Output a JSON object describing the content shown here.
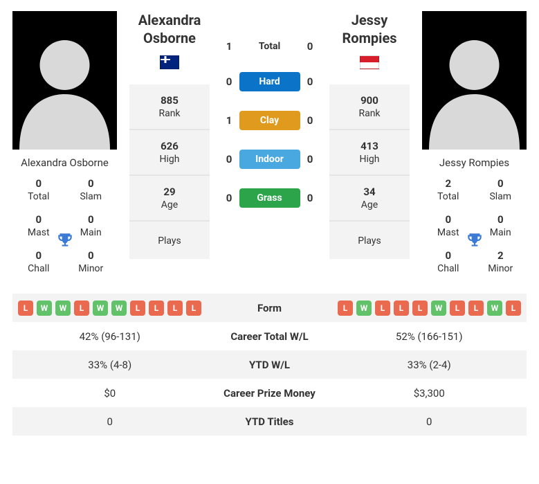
{
  "p1": {
    "name": "Alexandra Osborne",
    "country": "Australia",
    "flag_class": "flag-aus",
    "rank": "885",
    "rank_label": "Rank",
    "high": "626",
    "high_label": "High",
    "age": "29",
    "age_label": "Age",
    "plays_label": "Plays",
    "titles": {
      "total": "0",
      "total_label": "Total",
      "slam": "0",
      "slam_label": "Slam",
      "mast": "0",
      "mast_label": "Mast",
      "main": "0",
      "main_label": "Main",
      "chall": "0",
      "chall_label": "Chall",
      "minor": "0",
      "minor_label": "Minor"
    }
  },
  "p2": {
    "name": "Jessy Rompies",
    "country": "Indonesia",
    "flag_class": "flag-idn",
    "rank": "900",
    "rank_label": "Rank",
    "high": "413",
    "high_label": "High",
    "age": "34",
    "age_label": "Age",
    "plays_label": "Plays",
    "titles": {
      "total": "2",
      "total_label": "Total",
      "slam": "0",
      "slam_label": "Slam",
      "mast": "0",
      "mast_label": "Mast",
      "main": "0",
      "main_label": "Main",
      "chall": "0",
      "chall_label": "Chall",
      "minor": "2",
      "minor_label": "Minor"
    }
  },
  "h2h": {
    "total_label": "Total",
    "hard_label": "Hard",
    "clay_label": "Clay",
    "indoor_label": "Indoor",
    "grass_label": "Grass",
    "p1": {
      "total": "1",
      "hard": "0",
      "clay": "1",
      "indoor": "0",
      "grass": "0"
    },
    "p2": {
      "total": "0",
      "hard": "0",
      "clay": "0",
      "indoor": "0",
      "grass": "0"
    }
  },
  "colors": {
    "hard": "#0b74c9",
    "clay": "#e09a1d",
    "indoor": "#4aa8e0",
    "grass": "#2ca54a",
    "win": "#61c26a",
    "loss": "#e96a4f",
    "trophy": "#3b7bd6",
    "stat_bg": "#f3f3f3"
  },
  "form": {
    "label": "Form",
    "p1": [
      "L",
      "W",
      "W",
      "L",
      "W",
      "W",
      "L",
      "L",
      "L",
      "L"
    ],
    "p2": [
      "L",
      "W",
      "L",
      "L",
      "L",
      "W",
      "L",
      "L",
      "W",
      "L"
    ]
  },
  "table": {
    "rows": [
      {
        "label": "Career Total W/L",
        "p1": "42% (96-131)",
        "p2": "52% (166-151)"
      },
      {
        "label": "YTD W/L",
        "p1": "33% (4-8)",
        "p2": "33% (2-4)"
      },
      {
        "label": "Career Prize Money",
        "p1": "$0",
        "p2": "$3,300"
      },
      {
        "label": "YTD Titles",
        "p1": "0",
        "p2": "0"
      }
    ]
  }
}
